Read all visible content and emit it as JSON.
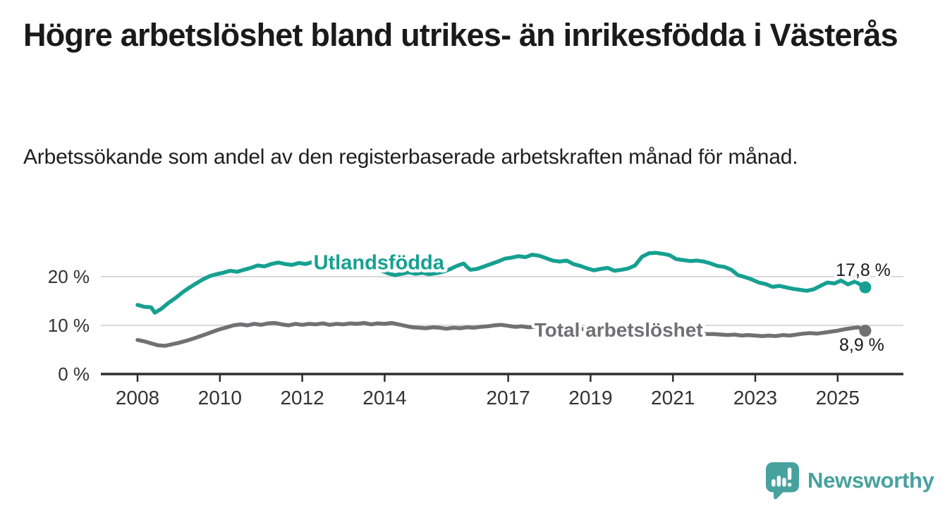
{
  "title": "Högre arbetslöshet bland utrikes- än inrikesfödda i Västerås",
  "subtitle": "Arbetssökande som andel av den registerbaserade arbetskraften månad för månad.",
  "brand": {
    "name": "Newsworthy",
    "icon": "newsworthy-speech-bubble-bar-chart-icon"
  },
  "colors": {
    "series_foreign_born": "#16a091",
    "series_total": "#717173",
    "grid": "#d9d9d9",
    "axis": "#2e2e2e",
    "tick_text": "#333333",
    "value_text": "#1a1a1a",
    "logo_teal": "#47a29e"
  },
  "chart_data": {
    "type": "line",
    "title": "Högre arbetslöshet bland utrikes- än inrikesfödda i Västerås",
    "subtitle": "Arbetssökande som andel av den registerbaserade arbetskraften månad för månad.",
    "x_unit": "year (fractional years = months)",
    "y_unit": "%",
    "xlim": [
      2007.1,
      2026.6
    ],
    "ylim": [
      0,
      27
    ],
    "grid": "horizontal-only",
    "legend_position": "inline-on-lines",
    "x_axis": {
      "ticks": [
        2008,
        2010,
        2012,
        2014,
        2017,
        2019,
        2021,
        2023,
        2025
      ]
    },
    "y_axis": {
      "ticks": [
        {
          "value": 0,
          "label": "0 %"
        },
        {
          "value": 10,
          "label": "10 %"
        },
        {
          "value": 20,
          "label": "20 %"
        }
      ],
      "gridlines_at": [
        10,
        20
      ]
    },
    "series": [
      {
        "name": "Utlandsfödda",
        "color": "#16a091",
        "end_value": 17.8,
        "end_value_label": "17,8 %",
        "inline_label": {
          "at_year": 2013.86,
          "at_pct": 23.0
        },
        "points": [
          [
            2008.0,
            14.2
          ],
          [
            2008.17,
            13.8
          ],
          [
            2008.33,
            13.7
          ],
          [
            2008.42,
            12.6
          ],
          [
            2008.58,
            13.4
          ],
          [
            2008.75,
            14.6
          ],
          [
            2008.92,
            15.6
          ],
          [
            2009.08,
            16.7
          ],
          [
            2009.25,
            17.7
          ],
          [
            2009.42,
            18.6
          ],
          [
            2009.58,
            19.4
          ],
          [
            2009.75,
            20.1
          ],
          [
            2009.92,
            20.5
          ],
          [
            2010.08,
            20.8
          ],
          [
            2010.25,
            21.2
          ],
          [
            2010.42,
            21.0
          ],
          [
            2010.58,
            21.4
          ],
          [
            2010.75,
            21.8
          ],
          [
            2010.92,
            22.3
          ],
          [
            2011.08,
            22.1
          ],
          [
            2011.25,
            22.6
          ],
          [
            2011.42,
            22.9
          ],
          [
            2011.58,
            22.6
          ],
          [
            2011.75,
            22.4
          ],
          [
            2011.92,
            22.8
          ],
          [
            2012.08,
            22.6
          ],
          [
            2012.25,
            23.0
          ],
          [
            2012.42,
            23.3
          ],
          [
            2012.58,
            22.9
          ],
          [
            2012.75,
            23.1
          ],
          [
            2012.92,
            22.8
          ],
          [
            2013.08,
            23.0
          ],
          [
            2013.25,
            22.7
          ],
          [
            2013.42,
            22.4
          ],
          [
            2013.58,
            22.1
          ],
          [
            2013.75,
            21.7
          ],
          [
            2013.92,
            21.2
          ],
          [
            2014.08,
            20.7
          ],
          [
            2014.25,
            20.3
          ],
          [
            2014.42,
            20.6
          ],
          [
            2014.58,
            20.9
          ],
          [
            2014.75,
            20.6
          ],
          [
            2014.92,
            20.8
          ],
          [
            2015.08,
            20.5
          ],
          [
            2015.25,
            20.7
          ],
          [
            2015.42,
            21.0
          ],
          [
            2015.58,
            21.5
          ],
          [
            2015.75,
            22.2
          ],
          [
            2015.92,
            22.7
          ],
          [
            2016.0,
            22.0
          ],
          [
            2016.08,
            21.4
          ],
          [
            2016.25,
            21.6
          ],
          [
            2016.42,
            22.1
          ],
          [
            2016.58,
            22.6
          ],
          [
            2016.75,
            23.1
          ],
          [
            2016.92,
            23.7
          ],
          [
            2017.08,
            23.9
          ],
          [
            2017.25,
            24.2
          ],
          [
            2017.42,
            24.0
          ],
          [
            2017.58,
            24.5
          ],
          [
            2017.75,
            24.3
          ],
          [
            2017.92,
            23.8
          ],
          [
            2018.08,
            23.3
          ],
          [
            2018.25,
            23.1
          ],
          [
            2018.42,
            23.3
          ],
          [
            2018.58,
            22.6
          ],
          [
            2018.75,
            22.2
          ],
          [
            2018.92,
            21.7
          ],
          [
            2019.08,
            21.3
          ],
          [
            2019.25,
            21.6
          ],
          [
            2019.42,
            21.8
          ],
          [
            2019.58,
            21.2
          ],
          [
            2019.75,
            21.4
          ],
          [
            2019.92,
            21.7
          ],
          [
            2020.08,
            22.3
          ],
          [
            2020.25,
            24.1
          ],
          [
            2020.42,
            24.8
          ],
          [
            2020.58,
            24.9
          ],
          [
            2020.75,
            24.7
          ],
          [
            2020.92,
            24.4
          ],
          [
            2021.08,
            23.6
          ],
          [
            2021.25,
            23.4
          ],
          [
            2021.42,
            23.2
          ],
          [
            2021.58,
            23.3
          ],
          [
            2021.75,
            23.1
          ],
          [
            2021.92,
            22.7
          ],
          [
            2022.08,
            22.2
          ],
          [
            2022.25,
            22.0
          ],
          [
            2022.42,
            21.4
          ],
          [
            2022.58,
            20.3
          ],
          [
            2022.75,
            19.9
          ],
          [
            2022.92,
            19.4
          ],
          [
            2023.08,
            18.8
          ],
          [
            2023.25,
            18.5
          ],
          [
            2023.42,
            17.9
          ],
          [
            2023.58,
            18.1
          ],
          [
            2023.75,
            17.8
          ],
          [
            2023.92,
            17.5
          ],
          [
            2024.08,
            17.3
          ],
          [
            2024.25,
            17.1
          ],
          [
            2024.42,
            17.4
          ],
          [
            2024.58,
            18.1
          ],
          [
            2024.75,
            18.8
          ],
          [
            2024.92,
            18.6
          ],
          [
            2025.08,
            19.2
          ],
          [
            2025.25,
            18.4
          ],
          [
            2025.42,
            19.0
          ],
          [
            2025.67,
            17.8
          ]
        ]
      },
      {
        "name": "Total arbetslöshet",
        "color": "#717173",
        "end_value": 8.9,
        "end_value_label": "8,9 %",
        "inline_label": {
          "at_year": 2019.68,
          "at_pct": 9.1
        },
        "points": [
          [
            2008.0,
            7.0
          ],
          [
            2008.17,
            6.7
          ],
          [
            2008.33,
            6.3
          ],
          [
            2008.5,
            5.9
          ],
          [
            2008.67,
            5.8
          ],
          [
            2008.83,
            6.1
          ],
          [
            2009.0,
            6.4
          ],
          [
            2009.17,
            6.8
          ],
          [
            2009.33,
            7.2
          ],
          [
            2009.5,
            7.7
          ],
          [
            2009.67,
            8.2
          ],
          [
            2009.83,
            8.7
          ],
          [
            2010.0,
            9.2
          ],
          [
            2010.17,
            9.6
          ],
          [
            2010.33,
            10.0
          ],
          [
            2010.5,
            10.2
          ],
          [
            2010.67,
            10.0
          ],
          [
            2010.83,
            10.3
          ],
          [
            2011.0,
            10.1
          ],
          [
            2011.17,
            10.4
          ],
          [
            2011.33,
            10.5
          ],
          [
            2011.5,
            10.2
          ],
          [
            2011.67,
            10.0
          ],
          [
            2011.83,
            10.3
          ],
          [
            2012.0,
            10.1
          ],
          [
            2012.17,
            10.3
          ],
          [
            2012.33,
            10.2
          ],
          [
            2012.5,
            10.4
          ],
          [
            2012.67,
            10.1
          ],
          [
            2012.83,
            10.3
          ],
          [
            2013.0,
            10.2
          ],
          [
            2013.17,
            10.4
          ],
          [
            2013.33,
            10.3
          ],
          [
            2013.5,
            10.5
          ],
          [
            2013.67,
            10.2
          ],
          [
            2013.83,
            10.4
          ],
          [
            2014.0,
            10.3
          ],
          [
            2014.17,
            10.5
          ],
          [
            2014.33,
            10.2
          ],
          [
            2014.5,
            9.9
          ],
          [
            2014.67,
            9.6
          ],
          [
            2014.83,
            9.5
          ],
          [
            2015.0,
            9.4
          ],
          [
            2015.17,
            9.6
          ],
          [
            2015.33,
            9.5
          ],
          [
            2015.5,
            9.3
          ],
          [
            2015.67,
            9.5
          ],
          [
            2015.83,
            9.4
          ],
          [
            2016.0,
            9.6
          ],
          [
            2016.17,
            9.5
          ],
          [
            2016.33,
            9.7
          ],
          [
            2016.5,
            9.8
          ],
          [
            2016.67,
            10.0
          ],
          [
            2016.83,
            10.1
          ],
          [
            2017.0,
            9.9
          ],
          [
            2017.17,
            9.7
          ],
          [
            2017.33,
            9.8
          ],
          [
            2017.5,
            9.6
          ],
          [
            2017.67,
            9.7
          ],
          [
            2017.83,
            9.5
          ],
          [
            2018.0,
            9.6
          ],
          [
            2018.17,
            9.4
          ],
          [
            2018.33,
            9.5
          ],
          [
            2018.5,
            9.3
          ],
          [
            2018.67,
            9.4
          ],
          [
            2018.83,
            9.2
          ],
          [
            2019.0,
            9.1
          ],
          [
            2019.17,
            9.2
          ],
          [
            2019.33,
            9.0
          ],
          [
            2019.5,
            8.9
          ],
          [
            2019.67,
            9.0
          ],
          [
            2019.83,
            8.8
          ],
          [
            2020.0,
            8.7
          ],
          [
            2020.17,
            8.9
          ],
          [
            2020.33,
            9.1
          ],
          [
            2020.5,
            9.0
          ],
          [
            2020.67,
            8.9
          ],
          [
            2020.83,
            8.8
          ],
          [
            2021.0,
            8.7
          ],
          [
            2021.17,
            8.6
          ],
          [
            2021.33,
            8.5
          ],
          [
            2021.5,
            8.4
          ],
          [
            2021.67,
            8.3
          ],
          [
            2021.83,
            8.2
          ],
          [
            2022.0,
            8.2
          ],
          [
            2022.17,
            8.1
          ],
          [
            2022.33,
            8.0
          ],
          [
            2022.5,
            8.1
          ],
          [
            2022.67,
            7.9
          ],
          [
            2022.83,
            8.0
          ],
          [
            2023.0,
            7.9
          ],
          [
            2023.17,
            7.8
          ],
          [
            2023.33,
            7.9
          ],
          [
            2023.5,
            7.8
          ],
          [
            2023.67,
            8.0
          ],
          [
            2023.83,
            7.9
          ],
          [
            2024.0,
            8.1
          ],
          [
            2024.17,
            8.3
          ],
          [
            2024.33,
            8.4
          ],
          [
            2024.5,
            8.3
          ],
          [
            2024.67,
            8.5
          ],
          [
            2024.83,
            8.7
          ],
          [
            2025.0,
            8.9
          ],
          [
            2025.17,
            9.2
          ],
          [
            2025.33,
            9.4
          ],
          [
            2025.5,
            9.6
          ],
          [
            2025.67,
            8.9
          ]
        ]
      }
    ]
  }
}
